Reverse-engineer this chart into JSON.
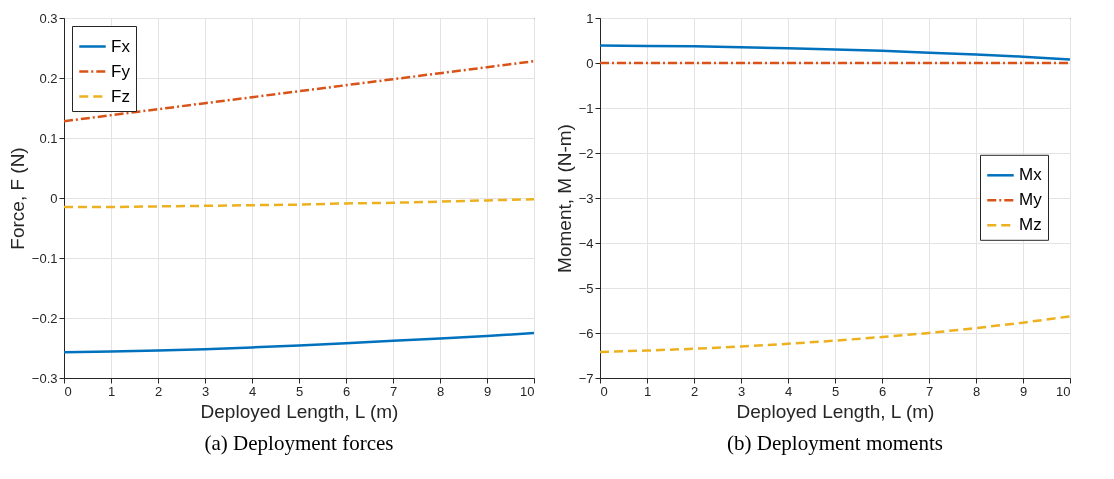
{
  "chart_data": [
    {
      "type": "line",
      "title": "(a) Deployment forces",
      "xlabel": "Deployed Length, L (m)",
      "ylabel": "Force, F (N)",
      "x": [
        0,
        1,
        2,
        3,
        4,
        5,
        6,
        7,
        8,
        9,
        10
      ],
      "xlim": [
        0,
        10
      ],
      "xticks": [
        0,
        1,
        2,
        3,
        4,
        5,
        6,
        7,
        8,
        9,
        10
      ],
      "ylim": [
        -0.3,
        0.3
      ],
      "yticks": [
        -0.3,
        -0.2,
        -0.1,
        0,
        0.1,
        0.2,
        0.3
      ],
      "grid": true,
      "legend": "top left",
      "series": [
        {
          "name": "Fx",
          "color": "#0072bd",
          "line_style": "solid",
          "values": [
            -0.257,
            -0.256,
            -0.254,
            -0.252,
            -0.249,
            -0.246,
            -0.242,
            -0.238,
            -0.234,
            -0.23,
            -0.225
          ]
        },
        {
          "name": "Fy",
          "color": "#d95319",
          "line_style": "dashdot",
          "values": [
            0.128,
            0.138,
            0.148,
            0.158,
            0.168,
            0.178,
            0.188,
            0.198,
            0.208,
            0.218,
            0.228
          ]
        },
        {
          "name": "Fz",
          "color": "#edb120",
          "line_style": "dashed",
          "values": [
            -0.015,
            -0.015,
            -0.014,
            -0.013,
            -0.012,
            -0.011,
            -0.009,
            -0.008,
            -0.006,
            -0.004,
            -0.002
          ]
        }
      ]
    },
    {
      "type": "line",
      "title": "(b) Deployment moments",
      "xlabel": "Deployed Length, L (m)",
      "ylabel": "Moment, M (N-m)",
      "x": [
        0,
        1,
        2,
        3,
        4,
        5,
        6,
        7,
        8,
        9,
        10
      ],
      "xlim": [
        0,
        10
      ],
      "xticks": [
        0,
        1,
        2,
        3,
        4,
        5,
        6,
        7,
        8,
        9,
        10
      ],
      "ylim": [
        -7,
        1
      ],
      "yticks": [
        -7,
        -6,
        -5,
        -4,
        -3,
        -2,
        -1,
        0,
        1
      ],
      "grid": true,
      "legend": "right",
      "series": [
        {
          "name": "Mx",
          "color": "#0072bd",
          "line_style": "solid",
          "values": [
            0.39,
            0.38,
            0.37,
            0.35,
            0.33,
            0.3,
            0.27,
            0.23,
            0.19,
            0.14,
            0.08
          ]
        },
        {
          "name": "My",
          "color": "#d95319",
          "line_style": "dashdot",
          "values": [
            0,
            0,
            0,
            0,
            0,
            0,
            0,
            0,
            0,
            0,
            0
          ]
        },
        {
          "name": "Mz",
          "color": "#edb120",
          "line_style": "dashed",
          "values": [
            -6.42,
            -6.39,
            -6.35,
            -6.3,
            -6.24,
            -6.17,
            -6.09,
            -6,
            -5.89,
            -5.77,
            -5.63
          ]
        }
      ]
    }
  ]
}
